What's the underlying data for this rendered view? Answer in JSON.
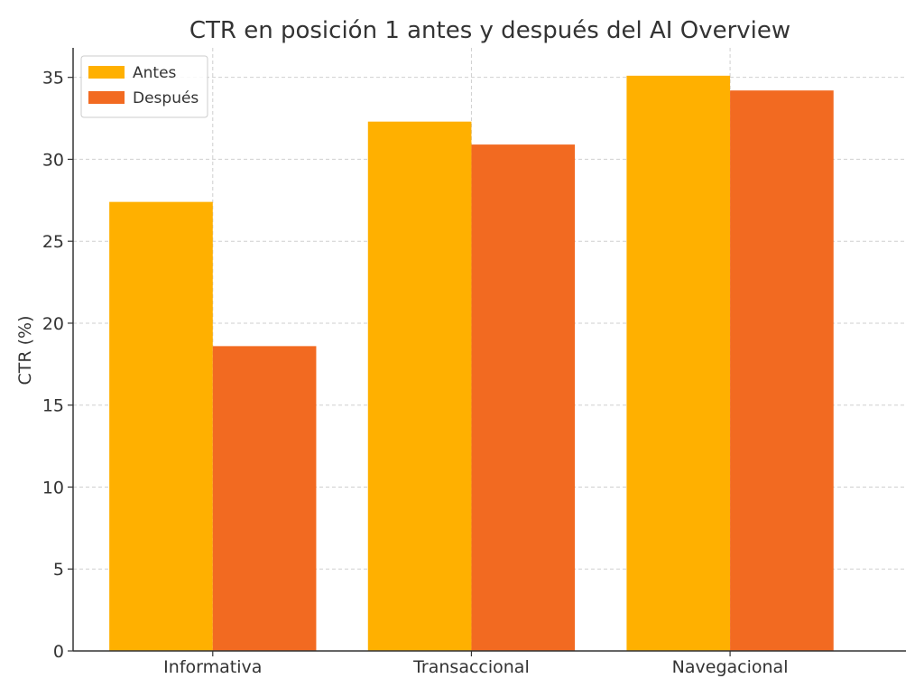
{
  "chart_data": {
    "type": "bar",
    "title": "CTR en posición 1 antes y después del AI Overview",
    "xlabel": "",
    "ylabel": "CTR (%)",
    "categories": [
      "Informativa",
      "Transaccional",
      "Navegacional"
    ],
    "series": [
      {
        "name": "Antes",
        "values": [
          27.4,
          32.3,
          35.1
        ],
        "color": "#FFB000"
      },
      {
        "name": "Después",
        "values": [
          18.6,
          30.9,
          34.2
        ],
        "color": "#F26A21"
      }
    ],
    "ylim": [
      0,
      36.8
    ],
    "yticks": [
      0,
      5,
      10,
      15,
      20,
      25,
      30,
      35
    ],
    "grid": true,
    "legend_position": "top-left"
  }
}
